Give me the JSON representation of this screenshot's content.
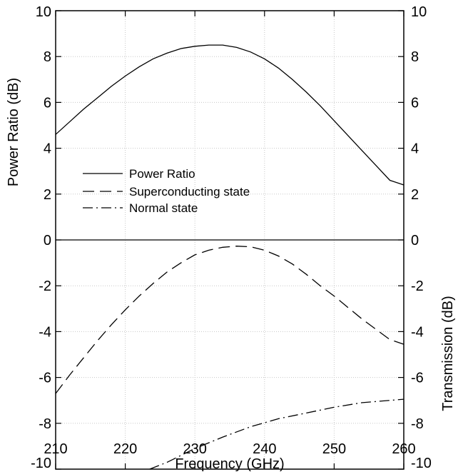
{
  "chart_data": {
    "type": "line",
    "xlabel": "Frequency (GHz)",
    "ylabel_left": "Power Ratio (dB)",
    "ylabel_right": "Transmission (dB)",
    "xlim": [
      210,
      260
    ],
    "ylim": [
      -10,
      10
    ],
    "x_ticks": [
      210,
      220,
      230,
      240,
      250,
      260
    ],
    "y_ticks": [
      -10,
      -8,
      -6,
      -4,
      -2,
      0,
      2,
      4,
      6,
      8,
      10
    ],
    "grid": true,
    "legend_position": "center-left",
    "series": [
      {
        "name": "Power Ratio",
        "style": "solid",
        "points": [
          [
            210,
            4.6
          ],
          [
            212,
            5.15
          ],
          [
            214,
            5.7
          ],
          [
            216,
            6.2
          ],
          [
            218,
            6.7
          ],
          [
            220,
            7.15
          ],
          [
            222,
            7.55
          ],
          [
            224,
            7.9
          ],
          [
            226,
            8.15
          ],
          [
            228,
            8.35
          ],
          [
            230,
            8.45
          ],
          [
            232,
            8.5
          ],
          [
            234,
            8.5
          ],
          [
            236,
            8.4
          ],
          [
            238,
            8.2
          ],
          [
            240,
            7.9
          ],
          [
            242,
            7.5
          ],
          [
            244,
            7.0
          ],
          [
            246,
            6.45
          ],
          [
            248,
            5.85
          ],
          [
            250,
            5.2
          ],
          [
            252,
            4.55
          ],
          [
            254,
            3.9
          ],
          [
            256,
            3.25
          ],
          [
            258,
            2.6
          ],
          [
            260,
            2.4
          ]
        ]
      },
      {
        "name": "Superconducting state",
        "style": "dashed",
        "points": [
          [
            210,
            -6.7
          ],
          [
            212,
            -5.9
          ],
          [
            214,
            -5.15
          ],
          [
            216,
            -4.4
          ],
          [
            218,
            -3.7
          ],
          [
            220,
            -3.05
          ],
          [
            222,
            -2.45
          ],
          [
            224,
            -1.9
          ],
          [
            226,
            -1.4
          ],
          [
            228,
            -1.0
          ],
          [
            230,
            -0.65
          ],
          [
            232,
            -0.45
          ],
          [
            234,
            -0.32
          ],
          [
            236,
            -0.27
          ],
          [
            238,
            -0.3
          ],
          [
            240,
            -0.45
          ],
          [
            242,
            -0.7
          ],
          [
            244,
            -1.05
          ],
          [
            246,
            -1.5
          ],
          [
            248,
            -2.0
          ],
          [
            250,
            -2.45
          ],
          [
            252,
            -2.95
          ],
          [
            254,
            -3.45
          ],
          [
            256,
            -3.9
          ],
          [
            258,
            -4.35
          ],
          [
            260,
            -4.55
          ]
        ]
      },
      {
        "name": "Normal state",
        "style": "dashdot",
        "points": [
          [
            223.5,
            -10.0
          ],
          [
            226,
            -9.7
          ],
          [
            230,
            -9.1
          ],
          [
            234,
            -8.6
          ],
          [
            238,
            -8.15
          ],
          [
            242,
            -7.8
          ],
          [
            246,
            -7.55
          ],
          [
            250,
            -7.3
          ],
          [
            254,
            -7.1
          ],
          [
            258,
            -7.0
          ],
          [
            260,
            -6.95
          ]
        ]
      }
    ]
  }
}
